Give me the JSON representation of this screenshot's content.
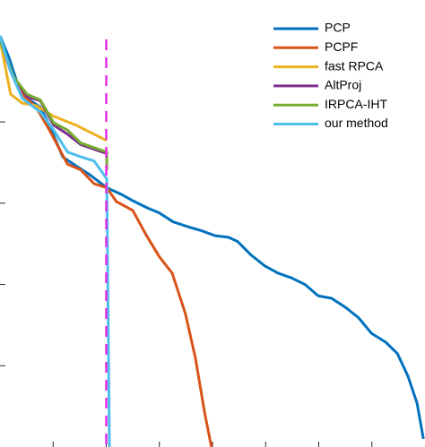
{
  "chart_data": {
    "type": "line",
    "xlim": [
      0,
      8
    ],
    "ylim": [
      0,
      5.5
    ],
    "xticks": [
      1,
      2,
      3,
      4,
      5,
      6,
      7
    ],
    "yticks": [
      1,
      2,
      3,
      4
    ],
    "vline": {
      "x": 2,
      "color": "#e52ee5"
    },
    "legend": "upper right",
    "series": [
      {
        "name": "PCP",
        "color": "#0072BD",
        "x": [
          0,
          0.17,
          0.34,
          0.51,
          0.76,
          0.93,
          1.18,
          1.43,
          1.69,
          2.01,
          2.28,
          2.53,
          2.78,
          3.0,
          3.26,
          3.54,
          3.8,
          4.05,
          4.3,
          4.47,
          4.73,
          4.98,
          5.23,
          5.49,
          5.74,
          5.99,
          6.24,
          6.5,
          6.75,
          6.99,
          7.26,
          7.48,
          7.68,
          7.85,
          7.97
        ],
        "values": [
          5.06,
          4.79,
          4.45,
          4.29,
          4.18,
          3.96,
          3.57,
          3.46,
          3.35,
          3.19,
          3.11,
          3.02,
          2.94,
          2.88,
          2.77,
          2.71,
          2.66,
          2.6,
          2.58,
          2.53,
          2.36,
          2.23,
          2.14,
          2.08,
          2.0,
          1.86,
          1.83,
          1.72,
          1.59,
          1.4,
          1.29,
          1.15,
          0.87,
          0.54,
          0.1
        ]
      },
      {
        "name": "PCPF",
        "color": "#D95319",
        "x": [
          0,
          0.2,
          0.42,
          0.68,
          0.93,
          1.27,
          1.52,
          1.77,
          2.01,
          2.19,
          2.5,
          2.75,
          3.0,
          3.24,
          3.49,
          3.68,
          3.85,
          3.98
        ],
        "values": [
          5.01,
          4.62,
          4.34,
          4.18,
          3.9,
          3.48,
          3.41,
          3.24,
          3.19,
          3.02,
          2.91,
          2.61,
          2.34,
          2.14,
          1.64,
          1.09,
          0.43,
          0
        ]
      },
      {
        "name": "fast RPCA",
        "color": "#EDB120",
        "x": [
          0,
          0.2,
          0.42,
          0.68,
          1.01,
          1.43,
          2.01
        ],
        "values": [
          5.01,
          4.34,
          4.23,
          4.2,
          4.07,
          3.96,
          3.77
        ]
      },
      {
        "name": "AltProj",
        "color": "#7E2F8E",
        "x": [
          0,
          0.25,
          0.51,
          0.76,
          1.01,
          1.27,
          1.52,
          2.01
        ],
        "values": [
          5.01,
          4.56,
          4.31,
          4.26,
          3.96,
          3.85,
          3.72,
          3.61
        ]
      },
      {
        "name": "IRPCA-IHT",
        "color": "#77AC30",
        "x": [
          0,
          0.25,
          0.51,
          0.76,
          1.01,
          1.27,
          1.52,
          2.01,
          2.01
        ],
        "values": [
          5.01,
          4.56,
          4.34,
          4.27,
          3.99,
          3.9,
          3.74,
          3.63,
          3.41
        ]
      },
      {
        "name": "our method",
        "color": "#4DBEEE",
        "x": [
          0,
          0.2,
          0.42,
          0.76,
          1.01,
          1.27,
          1.52,
          1.77,
          2.01,
          2.06
        ],
        "values": [
          5.06,
          4.62,
          4.29,
          4.12,
          3.9,
          3.63,
          3.57,
          3.52,
          3.3,
          0
        ]
      }
    ]
  }
}
